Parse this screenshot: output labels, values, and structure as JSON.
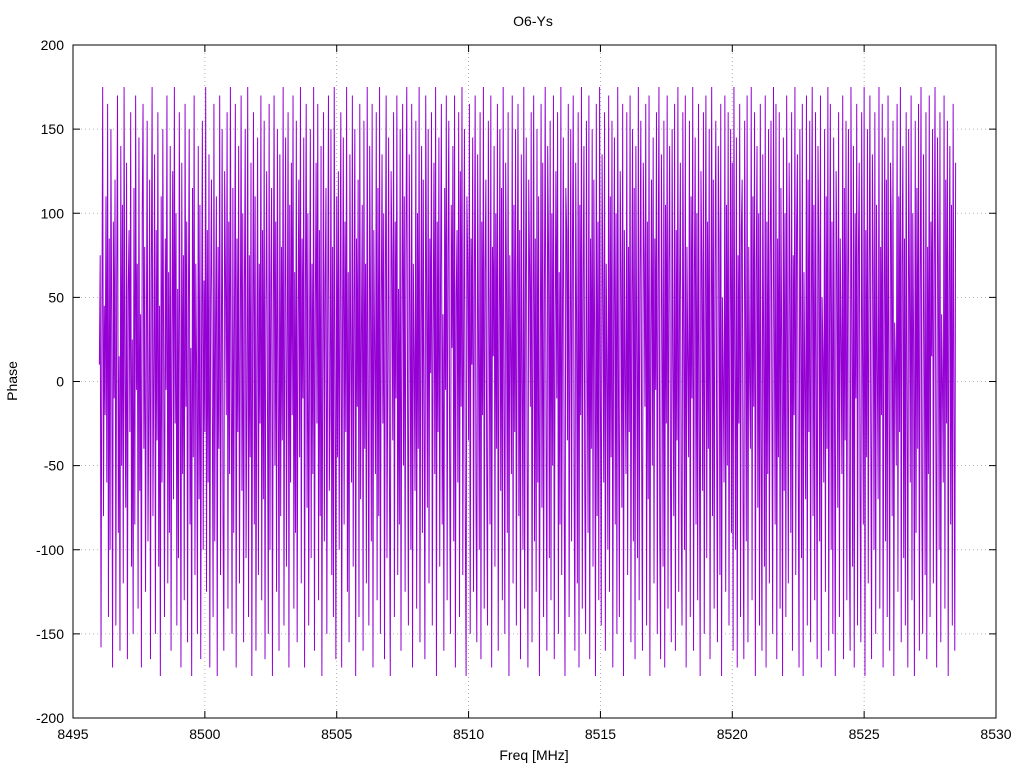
{
  "chart_data": {
    "type": "line",
    "title": "O6-Ys",
    "xlabel": "Freq [MHz]",
    "ylabel": "Phase",
    "xlim": [
      8495,
      8530
    ],
    "ylim": [
      -200,
      200
    ],
    "xticks": [
      8495,
      8500,
      8505,
      8510,
      8515,
      8520,
      8525,
      8530
    ],
    "yticks": [
      -200,
      -150,
      -100,
      -50,
      0,
      50,
      100,
      150,
      200
    ],
    "grid": true,
    "legend": "none",
    "series": [
      {
        "color": "#9400d3",
        "x_start": 8496.0,
        "x_end": 8528.0,
        "x_step": 0.03125,
        "values": [
          10,
          75,
          -158,
          20,
          175,
          -80,
          45,
          -20,
          110,
          -60,
          165,
          -140,
          85,
          -100,
          150,
          30,
          -170,
          95,
          -10,
          120,
          -145,
          60,
          170,
          -90,
          15,
          -160,
          140,
          -50,
          105,
          -120,
          175,
          0,
          -75,
          130,
          -165,
          55,
          90,
          -30,
          160,
          -110,
          25,
          -150,
          115,
          -85,
          170,
          -5,
          70,
          -135,
          145,
          -65,
          40,
          -170,
          100,
          165,
          -40,
          80,
          -125,
          20,
          155,
          -95,
          -15,
          120,
          -165,
          60,
          175,
          -80,
          5,
          135,
          -150,
          90,
          -35,
          160,
          -110,
          45,
          -175,
          110,
          -60,
          150,
          15,
          -140,
          85,
          -5,
          170,
          -120,
          65,
          -90,
          140,
          -160,
          30,
          125,
          -70,
          175,
          -25,
          100,
          -145,
          55,
          -105,
          160,
          10,
          -170,
          130,
          -55,
          75,
          -130,
          165,
          -15,
          95,
          -155,
          40,
          150,
          -85,
          20,
          -175,
          115,
          -45,
          170,
          -115,
          70,
          5,
          -150,
          140,
          -70,
          105,
          -165,
          25,
          155,
          -100,
          60,
          -30,
          175,
          -125,
          90,
          -60,
          135,
          -170,
          50,
          120,
          -10,
          -140,
          165,
          -95,
          35,
          110,
          -175,
          80,
          -40,
          170,
          -115,
          15,
          150,
          -80,
          -160,
          125,
          65,
          -20,
          160,
          -135,
          95,
          -55,
          175,
          0,
          -150,
          115,
          -90,
          45,
          165,
          -170,
          85,
          -30,
          140,
          -120,
          20,
          170,
          -65,
          100,
          -155,
          55,
          150,
          -105,
          -5,
          175,
          -140,
          75,
          -45,
          130,
          -175,
          35,
          160,
          -85,
          110,
          -160,
          10,
          145,
          -115,
          70,
          -25,
          170,
          -130,
          90,
          -70,
          155,
          -165,
          40,
          125,
          -15,
          -150,
          165,
          -100,
          60,
          115,
          -175,
          25,
          170,
          -50,
          95,
          -125,
          150,
          5,
          -160,
          135,
          -80,
          80,
          -35,
          175,
          -145,
          50,
          145,
          -110,
          20,
          160,
          -170,
          105,
          -60,
          130,
          -20,
          170,
          -135,
          65,
          -90,
          155,
          -155,
          30,
          120,
          -45,
          175,
          -120,
          85,
          -10,
          145,
          -170,
          55,
          165,
          -75,
          100,
          -145,
          15,
          150,
          -105,
          70,
          -55,
          175,
          -160,
          40,
          130,
          -25,
          165,
          -130,
          90,
          -80,
          140,
          -175,
          10,
          160,
          -95,
          60,
          115,
          -150,
          35,
          170,
          -65,
          -20,
          150,
          -115,
          80,
          -140,
          175,
          0,
          -165,
          110,
          -45,
          125,
          -100,
          55,
          160,
          -170,
          25,
          145,
          -85,
          95,
          -30,
          175,
          -125,
          65,
          -155,
          135,
          15,
          -60,
          170,
          -110,
          45,
          150,
          -175,
          85,
          -15,
          120,
          -140,
          165,
          -70,
          30,
          105,
          -160,
          155,
          -40,
          70,
          -120,
          175,
          -5,
          -145,
          140,
          50,
          -95,
          165,
          -170,
          90,
          20,
          -55,
          160,
          -130,
          115,
          -80,
          175,
          -150,
          40,
          135,
          -25,
          100,
          -165,
          60,
          170,
          -105,
          10,
          145,
          -60,
          -175,
          125,
          75,
          -35,
          160,
          -140,
          95,
          -10,
          170,
          -115,
          55,
          -85,
          150,
          -160,
          30,
          165,
          -50,
          110,
          -125,
          80,
          175,
          -15,
          -145,
          135,
          45,
          -100,
          165,
          -170,
          70,
          15,
          -65,
          155,
          -135,
          100,
          -40,
          175,
          -155,
          35,
          140,
          -90,
          120,
          -20,
          -165,
          170,
          60,
          -75,
          150,
          -120,
          85,
          5,
          160,
          -145,
          25,
          130,
          -55,
          175,
          -175,
          95,
          -30,
          145,
          -110,
          65,
          165,
          -85,
          40,
          -160,
          115,
          -5,
          170,
          -130,
          75,
          155,
          -45,
          -150,
          105,
          20,
          140,
          -95,
          170,
          -170,
          50,
          90,
          -60,
          160,
          -140,
          125,
          -15,
          175,
          -115,
          35,
          150,
          -80,
          -175,
          110,
          70,
          -35,
          165,
          -150,
          85,
          10,
          145,
          -125,
          55,
          170,
          -70,
          -155,
          135,
          30,
          -100,
          160,
          -165,
          95,
          -20,
          175,
          -135,
          65,
          120,
          -50,
          -145,
          155,
          40,
          -85,
          170,
          -170,
          80,
          15,
          140,
          -110,
          100,
          -40,
          165,
          -160,
          25,
          150,
          -65,
          115,
          -130,
          175,
          -5,
          -150,
          130,
          60,
          -90,
          160,
          -175,
          75,
          20,
          -55,
          170,
          -120,
          105,
          -30,
          150,
          -145,
          45,
          165,
          -80,
          90,
          -165,
          135,
          0,
          -100,
          175,
          -135,
          55,
          145,
          -45,
          -170,
          120,
          70,
          -15,
          160,
          -155,
          35,
          170,
          -95,
          85,
          -125,
          150,
          -60,
          110,
          -175,
          5,
          165,
          -75,
          130,
          -140,
          50,
          175,
          -25,
          -160,
          140,
          80,
          -105,
          155,
          -130,
          100,
          -50,
          170,
          -165,
          30,
          125,
          -10,
          160,
          -150,
          65,
          -85,
          175,
          -115,
          45,
          145,
          -70,
          -175,
          115,
          90,
          -35,
          165,
          -140,
          20,
          150,
          -95,
          75,
          170,
          -55,
          -160,
          130,
          40,
          -120,
          160,
          -170,
          105,
          -20,
          175,
          -135,
          60,
          140,
          -65,
          -150,
          155,
          15,
          -90,
          170,
          -165,
          85,
          -40,
          150,
          -110,
          120,
          25,
          -175,
          165,
          -80,
          95,
          -130,
          175,
          -10,
          -145,
          135,
          55,
          -60,
          160,
          -160,
          70,
          10,
          -100,
          170,
          -125,
          110,
          -45,
          155,
          -170,
          35,
          145,
          -85,
          100,
          -150,
          175,
          -20,
          -140,
          125,
          65,
          -75,
          165,
          -175,
          90,
          5,
          -55,
          160,
          -115,
          80,
          -30,
          170,
          -155,
          45,
          150,
          -95,
          115,
          -165,
          140,
          20,
          -105,
          175,
          -130,
          60,
          155,
          -40,
          -160,
          130,
          75,
          -15,
          165,
          -145,
          95,
          -70,
          170,
          -175,
          25,
          120,
          -50,
          145,
          -120,
          85,
          -5,
          160,
          -150,
          55,
          175,
          -90,
          -165,
          135,
          40,
          -110,
          155,
          -170,
          105,
          -25,
          170,
          -135,
          70,
          140,
          -60,
          -155,
          150,
          10,
          -80,
          165,
          -160,
          90,
          -35,
          175,
          -125,
          50,
          130,
          -75,
          -145,
          160,
          30,
          -100,
          170,
          -170,
          80,
          15,
          -45,
          155,
          -140,
          110,
          -10,
          175,
          -160,
          60,
          145,
          -85,
          100,
          -130,
          165,
          -20,
          -175,
          125,
          70,
          -65,
          160,
          -150,
          40,
          170,
          -105,
          95,
          -40,
          150,
          -165,
          20,
          175,
          -80,
          120,
          -135,
          65,
          155,
          -30,
          -155,
          140,
          85,
          -115,
          165,
          -175,
          50,
          0,
          -60,
          170,
          -125,
          105,
          -50,
          160,
          -145,
          35,
          150,
          -90,
          130,
          -160,
          175,
          15,
          -100,
          145,
          -170,
          75,
          -25,
          165,
          -140,
          90,
          120,
          -70,
          -165,
          155,
          45,
          -95,
          170,
          -155,
          80,
          5,
          -40,
          175,
          -130,
          110,
          -15,
          160,
          -175,
          60,
          140,
          -75,
          100,
          -145,
          165,
          -35,
          -160,
          135,
          25,
          -110,
          170,
          -170,
          95,
          -55,
          150,
          -120,
          70,
          155,
          -10,
          -150,
          175,
          40,
          -85,
          165,
          -165,
          85,
          -45,
          160,
          -135,
          115,
          20,
          -175,
          145,
          -65,
          100,
          -140,
          170,
          10,
          -120,
          130,
          55,
          -90,
          160,
          -160,
          75,
          -20,
          175,
          -115,
          90,
          135,
          -50,
          -170,
          150,
          30,
          -105,
          165,
          -175,
          65,
          0,
          -70,
          170,
          -145,
          120,
          -30,
          155,
          -155,
          45,
          175,
          -80,
          105,
          -130,
          160,
          -5,
          -165,
          140,
          80,
          -95,
          170,
          -170,
          50,
          15,
          -60,
          150,
          -125,
          110,
          -40,
          175,
          -160,
          35,
          165,
          -100,
          95,
          -150,
          145,
          -15,
          -175,
          125,
          70,
          -75,
          160,
          -140,
          85,
          25,
          -55,
          170,
          -165,
          115,
          -35,
          155,
          -130,
          60,
          150,
          -90,
          -160,
          175,
          40,
          -110,
          140,
          -170,
          100,
          -10,
          165,
          -145,
          75,
          130,
          -65,
          -155,
          160,
          20,
          -85,
          175,
          -175,
          90,
          -45,
          150,
          -120,
          55,
          170,
          -25,
          -165,
          135,
          65,
          -100,
          160,
          -150,
          105,
          5,
          -70,
          175,
          -135,
          80,
          -20,
          165,
          -170,
          45,
          145,
          -95,
          120,
          -140,
          170,
          -5,
          -160,
          130,
          95,
          -80,
          155,
          -175,
          35,
          10,
          -50,
          165,
          -125,
          110,
          -30,
          175,
          -155,
          70,
          140,
          -105,
          85,
          -145,
          160,
          -15,
          -170,
          150,
          60,
          -60,
          170,
          -130,
          100,
          25,
          -175,
          155,
          -90,
          115,
          -40,
          165,
          -160,
          50,
          175,
          -75,
          -150,
          135,
          30,
          -115,
          160,
          -165,
          80,
          -55,
          170,
          -140,
          95,
          15,
          150,
          -120,
          65,
          175,
          -35,
          -170,
          145,
          75,
          -100,
          160,
          -155,
          40,
          0,
          -60,
          170,
          -135,
          120,
          -25,
          155,
          -175,
          55,
          140,
          -85,
          105,
          -145,
          165,
          -10,
          -160,
          130
        ]
      }
    ]
  }
}
